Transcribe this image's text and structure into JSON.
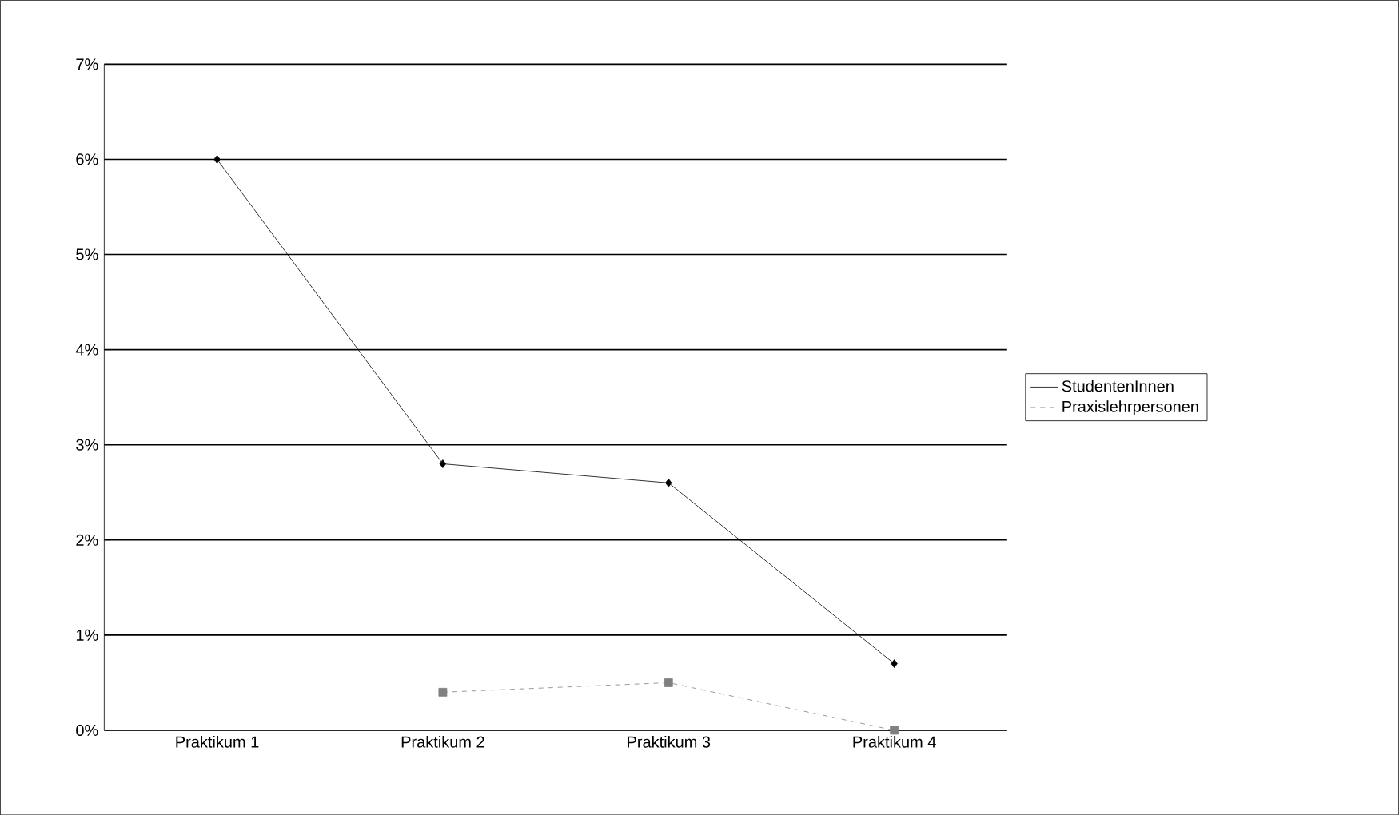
{
  "chart_data": {
    "type": "line",
    "categories": [
      "Praktikum 1",
      "Praktikum 2",
      "Praktikum 3",
      "Praktikum 4"
    ],
    "series": [
      {
        "name": "StudentenInnen",
        "color": "#000000",
        "values": [
          6.0,
          2.8,
          2.6,
          0.7
        ],
        "marker": "diamond",
        "line_style": "solid"
      },
      {
        "name": "Praxislehrpersonen",
        "color": "#808080",
        "values": [
          null,
          0.4,
          0.5,
          0.0
        ],
        "marker": "square",
        "line_style": "dashed"
      }
    ],
    "ylim": [
      0,
      7
    ],
    "yticks": [
      {
        "value": 0,
        "label": "0%"
      },
      {
        "value": 1,
        "label": "1%"
      },
      {
        "value": 2,
        "label": "2%"
      },
      {
        "value": 3,
        "label": "3%"
      },
      {
        "value": 4,
        "label": "4%"
      },
      {
        "value": 5,
        "label": "5%"
      },
      {
        "value": 6,
        "label": "6%"
      },
      {
        "value": 7,
        "label": "7%"
      }
    ],
    "grid": "y",
    "legend": "right"
  }
}
